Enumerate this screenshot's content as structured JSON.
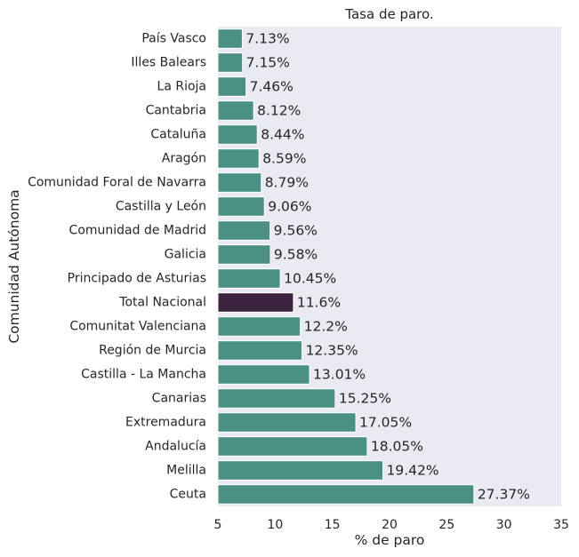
{
  "chart_data": {
    "type": "bar",
    "orientation": "horizontal",
    "title": "Tasa de paro.",
    "xlabel": "% de paro",
    "ylabel": "Comunidad Autónoma",
    "xlim": [
      5,
      35
    ],
    "xticks": [
      5,
      10,
      15,
      20,
      25,
      30,
      35
    ],
    "grid": false,
    "legend": "none",
    "colors": {
      "bar": "#4a9085",
      "highlight": "#3b2340",
      "background": "#eaeaf2"
    },
    "categories": [
      "País Vasco",
      "Illes  Balears",
      "La  Rioja",
      "Cantabria",
      "Cataluña",
      "Aragón",
      "Comunidad Foral de  Navarra",
      "Castilla y León",
      "Comunidad de  Madrid",
      "Galicia",
      "Principado de  Asturias",
      "Total Nacional",
      "Comunitat Valenciana",
      "Región de  Murcia",
      "Castilla - La Mancha",
      "Canarias",
      "Extremadura",
      "Andalucía",
      "Melilla",
      "Ceuta"
    ],
    "values": [
      7.13,
      7.15,
      7.46,
      8.12,
      8.44,
      8.59,
      8.79,
      9.06,
      9.56,
      9.58,
      10.45,
      11.6,
      12.2,
      12.35,
      13.01,
      15.25,
      17.05,
      18.05,
      19.42,
      27.37
    ],
    "data_labels": [
      "7.13%",
      "7.15%",
      "7.46%",
      "8.12%",
      "8.44%",
      "8.59%",
      "8.79%",
      "9.06%",
      "9.56%",
      "9.58%",
      "10.45%",
      "11.6%",
      "12.2%",
      "12.35%",
      "13.01%",
      "15.25%",
      "17.05%",
      "18.05%",
      "19.42%",
      "27.37%"
    ],
    "highlight_category": "Total Nacional"
  }
}
